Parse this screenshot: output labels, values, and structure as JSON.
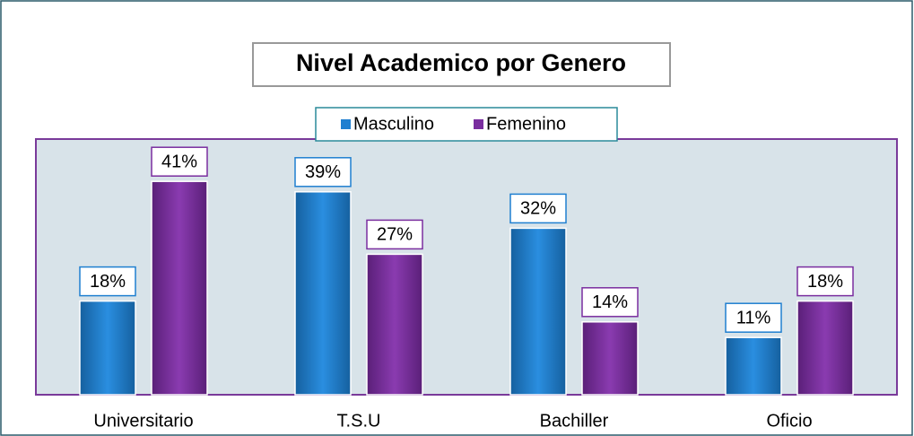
{
  "chart_data": {
    "type": "bar",
    "title": "Nivel Academico por Genero",
    "categories": [
      "Universitario",
      "T.S.U",
      "Bachiller",
      "Oficio"
    ],
    "series": [
      {
        "name": "Masculino",
        "color": "#1f7fd0",
        "values": [
          18,
          39,
          32,
          11
        ],
        "value_labels": [
          "18%",
          "39%",
          "32%",
          "11%"
        ]
      },
      {
        "name": "Femenino",
        "color": "#7a2e9f",
        "values": [
          41,
          27,
          14,
          18
        ],
        "value_labels": [
          "41%",
          "27%",
          "14%",
          "18%"
        ]
      }
    ]
  }
}
